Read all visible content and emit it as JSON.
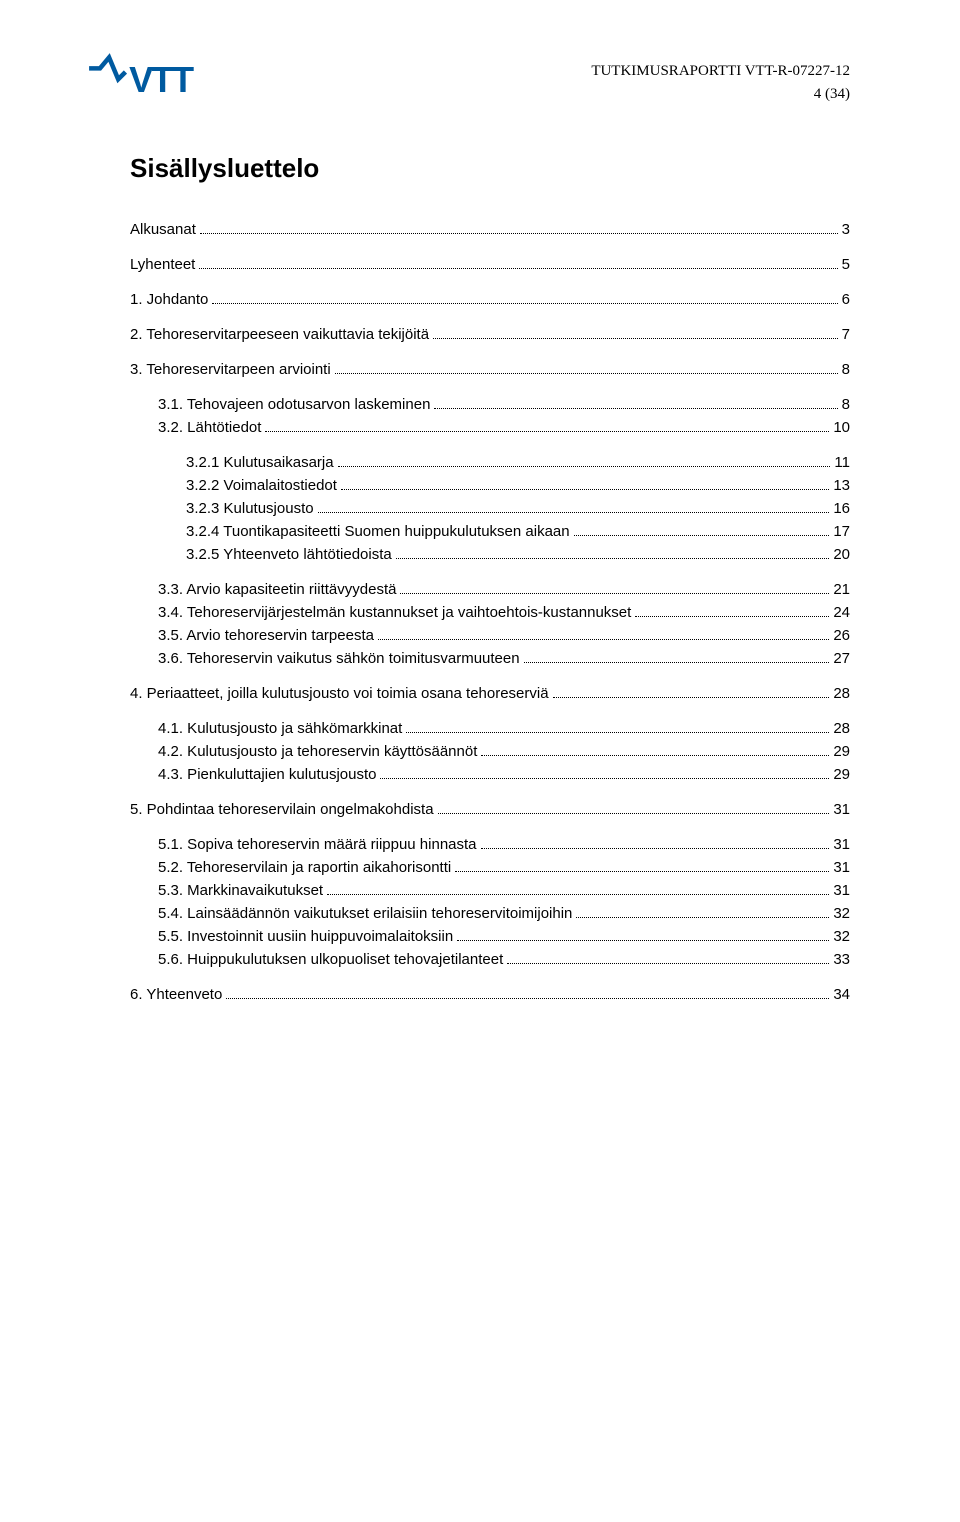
{
  "header": {
    "report_line": "TUTKIMUSRAPORTTI VTT-R-07227-12",
    "page_indicator": "4 (34)"
  },
  "logo": {
    "brand_color": "#005aa0",
    "text": "VTT"
  },
  "title": "Sisällysluettelo",
  "toc": [
    {
      "level": 0,
      "label": "Alkusanat",
      "page": "3",
      "gap_before": false
    },
    {
      "level": 0,
      "label": "Lyhenteet",
      "page": "5",
      "gap_before": true
    },
    {
      "level": 0,
      "label": "1. Johdanto",
      "page": "6",
      "gap_before": true
    },
    {
      "level": 0,
      "label": "2. Tehoreservitarpeeseen vaikuttavia tekijöitä",
      "page": "7",
      "gap_before": true
    },
    {
      "level": 0,
      "label": "3. Tehoreservitarpeen arviointi",
      "page": "8",
      "gap_before": true
    },
    {
      "level": 1,
      "label": "3.1. Tehovajeen odotusarvon laskeminen",
      "page": "8",
      "gap_before": true
    },
    {
      "level": 1,
      "label": "3.2. Lähtötiedot",
      "page": "10",
      "gap_before": false
    },
    {
      "level": 2,
      "label": "3.2.1 Kulutusaikasarja",
      "page": "11",
      "gap_before": true
    },
    {
      "level": 2,
      "label": "3.2.2 Voimalaitostiedot",
      "page": "13",
      "gap_before": false
    },
    {
      "level": 2,
      "label": "3.2.3 Kulutusjousto",
      "page": "16",
      "gap_before": false
    },
    {
      "level": 2,
      "label": "3.2.4 Tuontikapasiteetti Suomen huippukulutuksen aikaan",
      "page": "17",
      "gap_before": false
    },
    {
      "level": 2,
      "label": "3.2.5 Yhteenveto lähtötiedoista",
      "page": "20",
      "gap_before": false
    },
    {
      "level": 1,
      "label": "3.3. Arvio kapasiteetin riittävyydestä",
      "page": "21",
      "gap_before": true
    },
    {
      "level": 1,
      "label": "3.4. Tehoreservijärjestelmän kustannukset ja vaihtoehtois-kustannukset",
      "page": "24",
      "gap_before": false
    },
    {
      "level": 1,
      "label": "3.5. Arvio tehoreservin tarpeesta",
      "page": "26",
      "gap_before": false
    },
    {
      "level": 1,
      "label": "3.6. Tehoreservin vaikutus sähkön toimitusvarmuuteen",
      "page": "27",
      "gap_before": false
    },
    {
      "level": 0,
      "label": "4. Periaatteet, joilla kulutusjousto voi toimia osana tehoreserviä",
      "page": "28",
      "gap_before": true
    },
    {
      "level": 1,
      "label": "4.1. Kulutusjousto ja sähkömarkkinat",
      "page": "28",
      "gap_before": true
    },
    {
      "level": 1,
      "label": "4.2. Kulutusjousto ja tehoreservin käyttösäännöt",
      "page": "29",
      "gap_before": false
    },
    {
      "level": 1,
      "label": "4.3. Pienkuluttajien kulutusjousto",
      "page": "29",
      "gap_before": false
    },
    {
      "level": 0,
      "label": "5. Pohdintaa tehoreservilain ongelmakohdista",
      "page": "31",
      "gap_before": true
    },
    {
      "level": 1,
      "label": "5.1. Sopiva tehoreservin määrä riippuu hinnasta",
      "page": "31",
      "gap_before": true
    },
    {
      "level": 1,
      "label": "5.2. Tehoreservilain ja raportin aikahorisontti",
      "page": "31",
      "gap_before": false
    },
    {
      "level": 1,
      "label": "5.3. Markkinavaikutukset",
      "page": "31",
      "gap_before": false
    },
    {
      "level": 1,
      "label": "5.4. Lainsäädännön vaikutukset erilaisiin tehoreservitoimijoihin",
      "page": "32",
      "gap_before": false
    },
    {
      "level": 1,
      "label": "5.5. Investoinnit uusiin huippuvoimalaitoksiin",
      "page": "32",
      "gap_before": false
    },
    {
      "level": 1,
      "label": "5.6. Huippukulutuksen ulkopuoliset tehovajetilanteet",
      "page": "33",
      "gap_before": false
    },
    {
      "level": 0,
      "label": "6. Yhteenveto",
      "page": "34",
      "gap_before": true
    }
  ]
}
